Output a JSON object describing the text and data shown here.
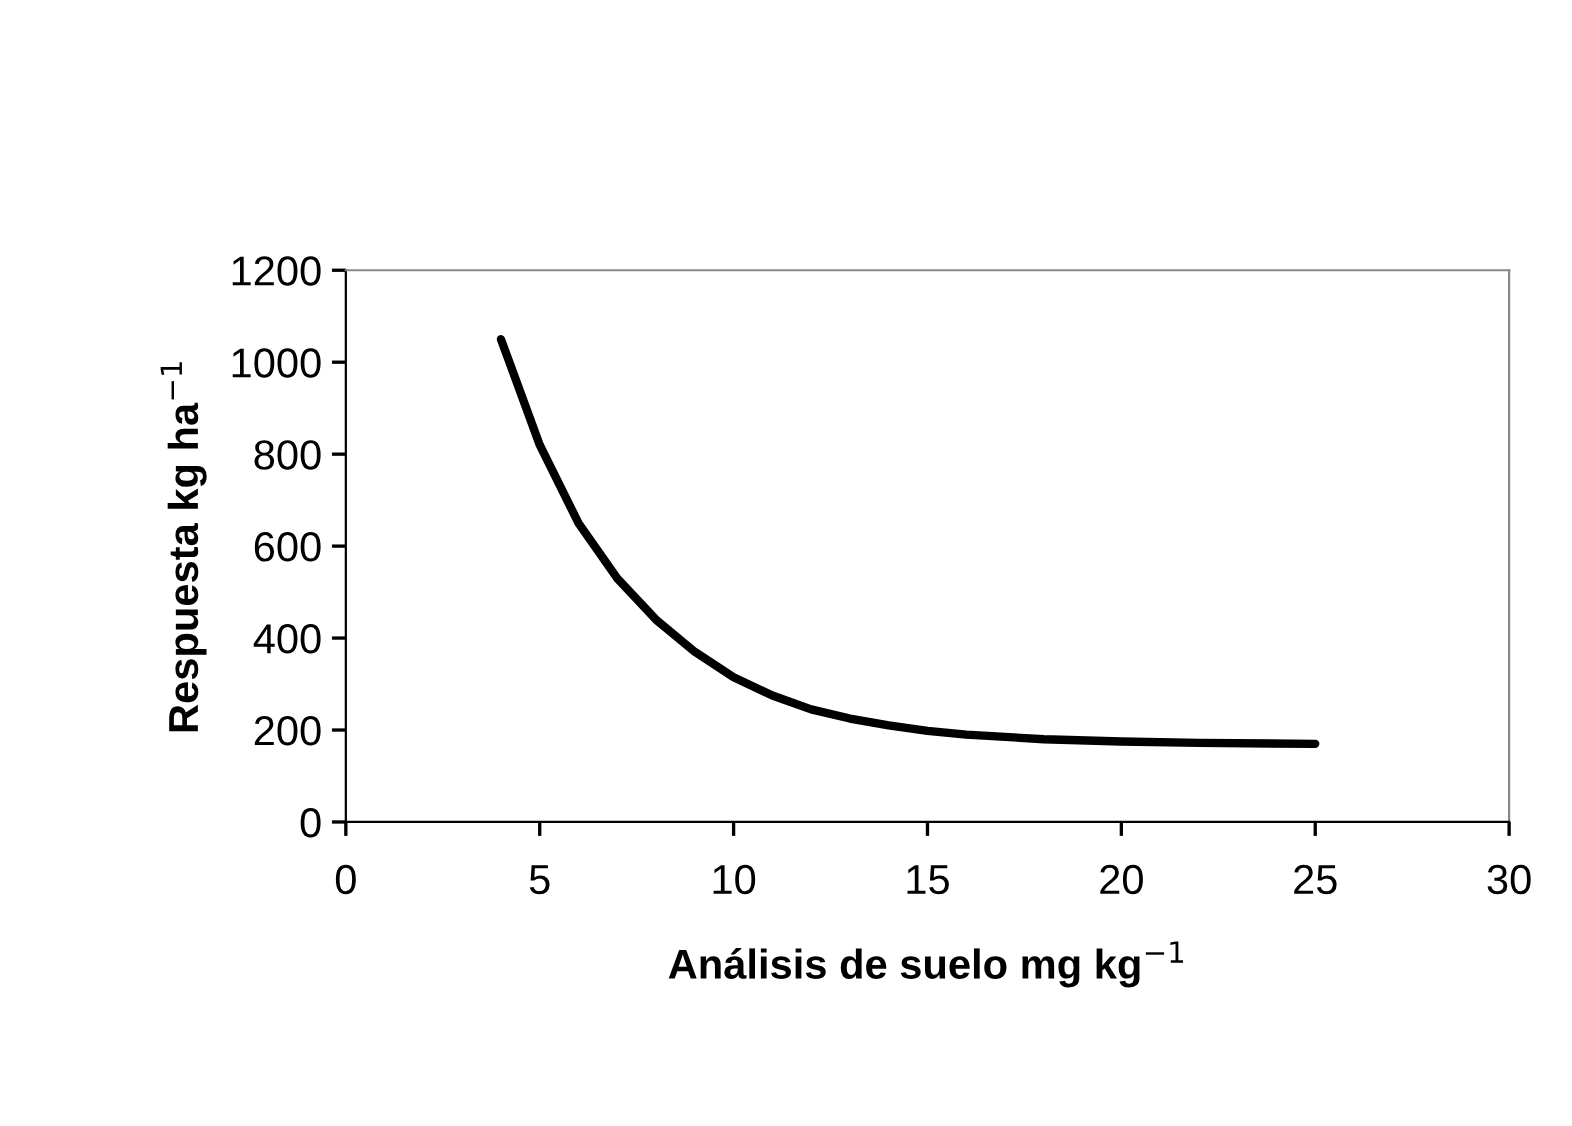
{
  "chart_data": {
    "type": "line",
    "xlabel": "Análisis de suelo mg kg$^{−1}$",
    "ylabel": "Respuesta kg ha$^{−1}$",
    "series": [
      {
        "color": "#000000",
        "x": [
          4,
          5,
          6,
          7,
          8,
          9,
          10,
          11,
          12,
          13,
          14,
          15,
          16,
          18,
          20,
          22,
          25
        ],
        "values": [
          1050,
          820,
          650,
          530,
          440,
          370,
          315,
          275,
          245,
          225,
          210,
          198,
          190,
          180,
          175,
          172,
          170
        ]
      }
    ],
    "xlim": [
      0,
      30
    ],
    "xticks": [
      0,
      5,
      10,
      15,
      20,
      25,
      30
    ],
    "ylim": [
      0,
      1200
    ],
    "yticks": [
      0,
      200,
      400,
      600,
      800,
      1000,
      1200
    ],
    "grid": false,
    "legend": false,
    "marker": "none",
    "line_style": "solid"
  }
}
